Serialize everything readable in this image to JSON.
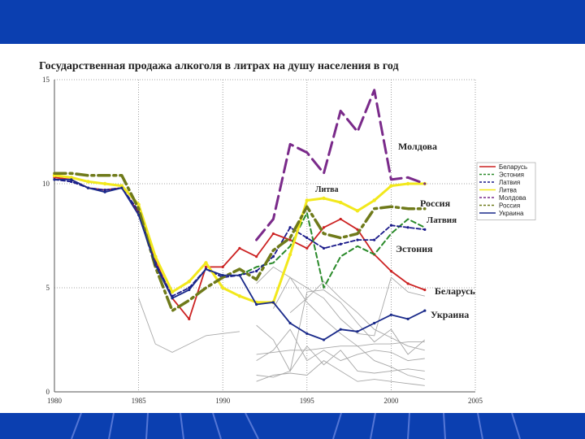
{
  "title": "Государственная продажа алкоголя в литрах на душу населения в год",
  "colors": {
    "banner": "#0b3fb0"
  },
  "chart_data": {
    "type": "line",
    "title": "Государственная продажа алкоголя в литрах на душу населения в год",
    "xlim": [
      1980,
      2005
    ],
    "ylim": [
      0,
      15
    ],
    "xticks": [
      "1980",
      "1985",
      "1990",
      "1995",
      "2000",
      "2005"
    ],
    "yticks": [
      "0",
      "5",
      "10",
      "15"
    ],
    "grid": true,
    "legend_position": "right",
    "series": [
      {
        "name": "Беларусь",
        "label": "Беларусь",
        "color": "#cc2222",
        "dash": "",
        "width": 1.8,
        "x": [
          1980,
          1981,
          1982,
          1983,
          1984,
          1985,
          1986,
          1987,
          1988,
          1989,
          1990,
          1991,
          1992,
          1993,
          1994,
          1995,
          1996,
          1997,
          1998,
          1999,
          2000,
          2001,
          2002
        ],
        "y": [
          10.3,
          10.2,
          9.8,
          9.7,
          9.8,
          8.6,
          6.3,
          4.5,
          3.5,
          6.0,
          6.0,
          6.9,
          6.5,
          7.6,
          7.3,
          6.9,
          7.9,
          8.3,
          7.8,
          6.6,
          5.8,
          5.2,
          4.9
        ]
      },
      {
        "name": "Эстония",
        "label": "Эстония",
        "color": "#2a8a2a",
        "dash": "6,4",
        "width": 2,
        "x": [
          1991,
          1992,
          1993,
          1994,
          1995,
          1996,
          1997,
          1998,
          1999,
          2000,
          2001,
          2002
        ],
        "y": [
          5.6,
          6.0,
          6.2,
          7.0,
          8.6,
          5.0,
          6.5,
          7.0,
          6.6,
          7.6,
          8.3,
          7.9
        ]
      },
      {
        "name": "Латвия",
        "label": "Латвия",
        "color": "#1a1a8a",
        "dash": "5,3",
        "width": 1.8,
        "x": [
          1980,
          1981,
          1982,
          1983,
          1984,
          1985,
          1986,
          1987,
          1988,
          1989,
          1990,
          1991,
          1992,
          1993,
          1994,
          1995,
          1996,
          1997,
          1998,
          1999,
          2000,
          2001,
          2002
        ],
        "y": [
          10.2,
          10.1,
          9.8,
          9.7,
          9.8,
          8.7,
          6.2,
          4.6,
          5.0,
          5.9,
          5.5,
          5.6,
          5.8,
          6.5,
          7.9,
          7.4,
          6.9,
          7.1,
          7.3,
          7.3,
          8.0,
          7.9,
          7.8
        ]
      },
      {
        "name": "Литва",
        "label": "Литва",
        "color": "#f2e81c",
        "dash": "",
        "width": 3,
        "x": [
          1980,
          1981,
          1982,
          1983,
          1984,
          1985,
          1986,
          1987,
          1988,
          1989,
          1990,
          1991,
          1992,
          1993,
          1994,
          1995,
          1996,
          1997,
          1998,
          1999,
          2000,
          2001,
          2002
        ],
        "y": [
          10.4,
          10.3,
          10.1,
          10.0,
          9.9,
          9.0,
          6.5,
          4.8,
          5.3,
          6.2,
          5.0,
          4.6,
          4.3,
          4.3,
          6.6,
          9.2,
          9.3,
          9.1,
          8.7,
          9.2,
          9.9,
          10.0,
          10.0
        ]
      },
      {
        "name": "Молдова",
        "label": "Молдова",
        "color": "#7a2a8a",
        "dash": "16,7",
        "width": 3,
        "x": [
          1992,
          1993,
          1994,
          1995,
          1996,
          1997,
          1998,
          1999,
          2000,
          2001,
          2002
        ],
        "y": [
          7.3,
          8.3,
          11.9,
          11.5,
          10.5,
          13.5,
          12.5,
          14.5,
          10.2,
          10.3,
          10.0
        ]
      },
      {
        "name": "Россия",
        "label": "Россия",
        "color": "#6f7a1a",
        "dash": "14,5,3,5",
        "width": 3.5,
        "x": [
          1980,
          1981,
          1982,
          1983,
          1984,
          1985,
          1986,
          1987,
          1988,
          1989,
          1990,
          1991,
          1992,
          1993,
          1994,
          1995,
          1996,
          1997,
          1998,
          1999,
          2000,
          2001,
          2002
        ],
        "y": [
          10.5,
          10.5,
          10.4,
          10.4,
          10.4,
          8.8,
          6.0,
          3.9,
          4.4,
          5.0,
          5.5,
          5.9,
          5.4,
          6.8,
          7.4,
          8.9,
          7.6,
          7.4,
          7.6,
          8.8,
          8.9,
          8.8,
          8.8
        ]
      },
      {
        "name": "Украина",
        "label": "Украина",
        "color": "#1a2a8a",
        "dash": "",
        "width": 1.8,
        "x": [
          1980,
          1981,
          1982,
          1983,
          1984,
          1985,
          1986,
          1987,
          1988,
          1989,
          1990,
          1991,
          1992,
          1993,
          1994,
          1995,
          1996,
          1997,
          1998,
          1999,
          2000,
          2001,
          2002
        ],
        "y": [
          10.2,
          10.2,
          9.8,
          9.6,
          9.8,
          8.5,
          6.1,
          4.5,
          4.9,
          5.9,
          5.6,
          5.6,
          4.2,
          4.3,
          3.3,
          2.8,
          2.5,
          3.0,
          2.9,
          3.3,
          3.7,
          3.5,
          3.9
        ]
      }
    ],
    "background_series": [
      {
        "x": [
          1985,
          1986,
          1987,
          1988,
          1989,
          1990,
          1991
        ],
        "y": [
          4.5,
          2.3,
          1.9,
          2.3,
          2.7,
          2.8,
          2.9
        ]
      },
      {
        "x": [
          1992,
          1993,
          1994,
          1995,
          1996,
          1997,
          1998,
          1999,
          2000,
          2001,
          2002
        ],
        "y": [
          1.5,
          2.0,
          3.0,
          1.5,
          2.0,
          1.5,
          1.8,
          2.0,
          1.9,
          1.5,
          1.6
        ]
      },
      {
        "x": [
          1992,
          1993,
          1994,
          1995,
          1996,
          1997,
          1998,
          1999,
          2000,
          2001,
          2002
        ],
        "y": [
          3.2,
          2.5,
          1.0,
          4.8,
          4.9,
          4.3,
          3.3,
          2.4,
          3.0,
          1.8,
          2.5
        ]
      },
      {
        "x": [
          1992,
          1993,
          1994,
          1995,
          1996,
          1997,
          1998,
          1999,
          2000,
          2001,
          2002
        ],
        "y": [
          5.2,
          6.0,
          5.5,
          5.0,
          4.5,
          3.5,
          2.8,
          2.7,
          5.5,
          4.8,
          4.6
        ]
      },
      {
        "x": [
          1992,
          1993,
          1994,
          1995,
          1996,
          1997,
          1998,
          1999,
          2000,
          2001,
          2002
        ],
        "y": [
          0.8,
          0.7,
          1.0,
          2.2,
          1.3,
          2.0,
          1.0,
          0.9,
          1.0,
          1.1,
          1.0
        ]
      },
      {
        "x": [
          1992,
          1993,
          1994,
          1995,
          1996,
          1997,
          1998,
          1999,
          2000,
          2001,
          2002
        ],
        "y": [
          0.5,
          0.8,
          0.9,
          0.8,
          1.5,
          1.0,
          0.5,
          0.6,
          0.5,
          0.4,
          0.3
        ]
      },
      {
        "x": [
          1992,
          1993,
          1994,
          1995,
          1996,
          1997,
          1998,
          1999,
          2000,
          2001,
          2002
        ],
        "y": [
          1.8,
          1.9,
          2.0,
          2.0,
          2.1,
          2.2,
          2.2,
          2.3,
          2.3,
          2.4,
          2.4
        ]
      },
      {
        "x": [
          1993,
          1994,
          1995,
          1996,
          1997,
          1998,
          1999,
          2000,
          2001,
          2002
        ],
        "y": [
          4.0,
          5.5,
          4.3,
          3.5,
          2.8,
          2.2,
          1.5,
          1.2,
          0.8,
          0.6
        ]
      },
      {
        "x": [
          1994,
          1995,
          1996,
          1997,
          1998,
          1999,
          2000,
          2001,
          2002
        ],
        "y": [
          3.8,
          4.5,
          5.3,
          4.5,
          3.8,
          3.0,
          2.6,
          2.2,
          2.0
        ]
      }
    ]
  }
}
